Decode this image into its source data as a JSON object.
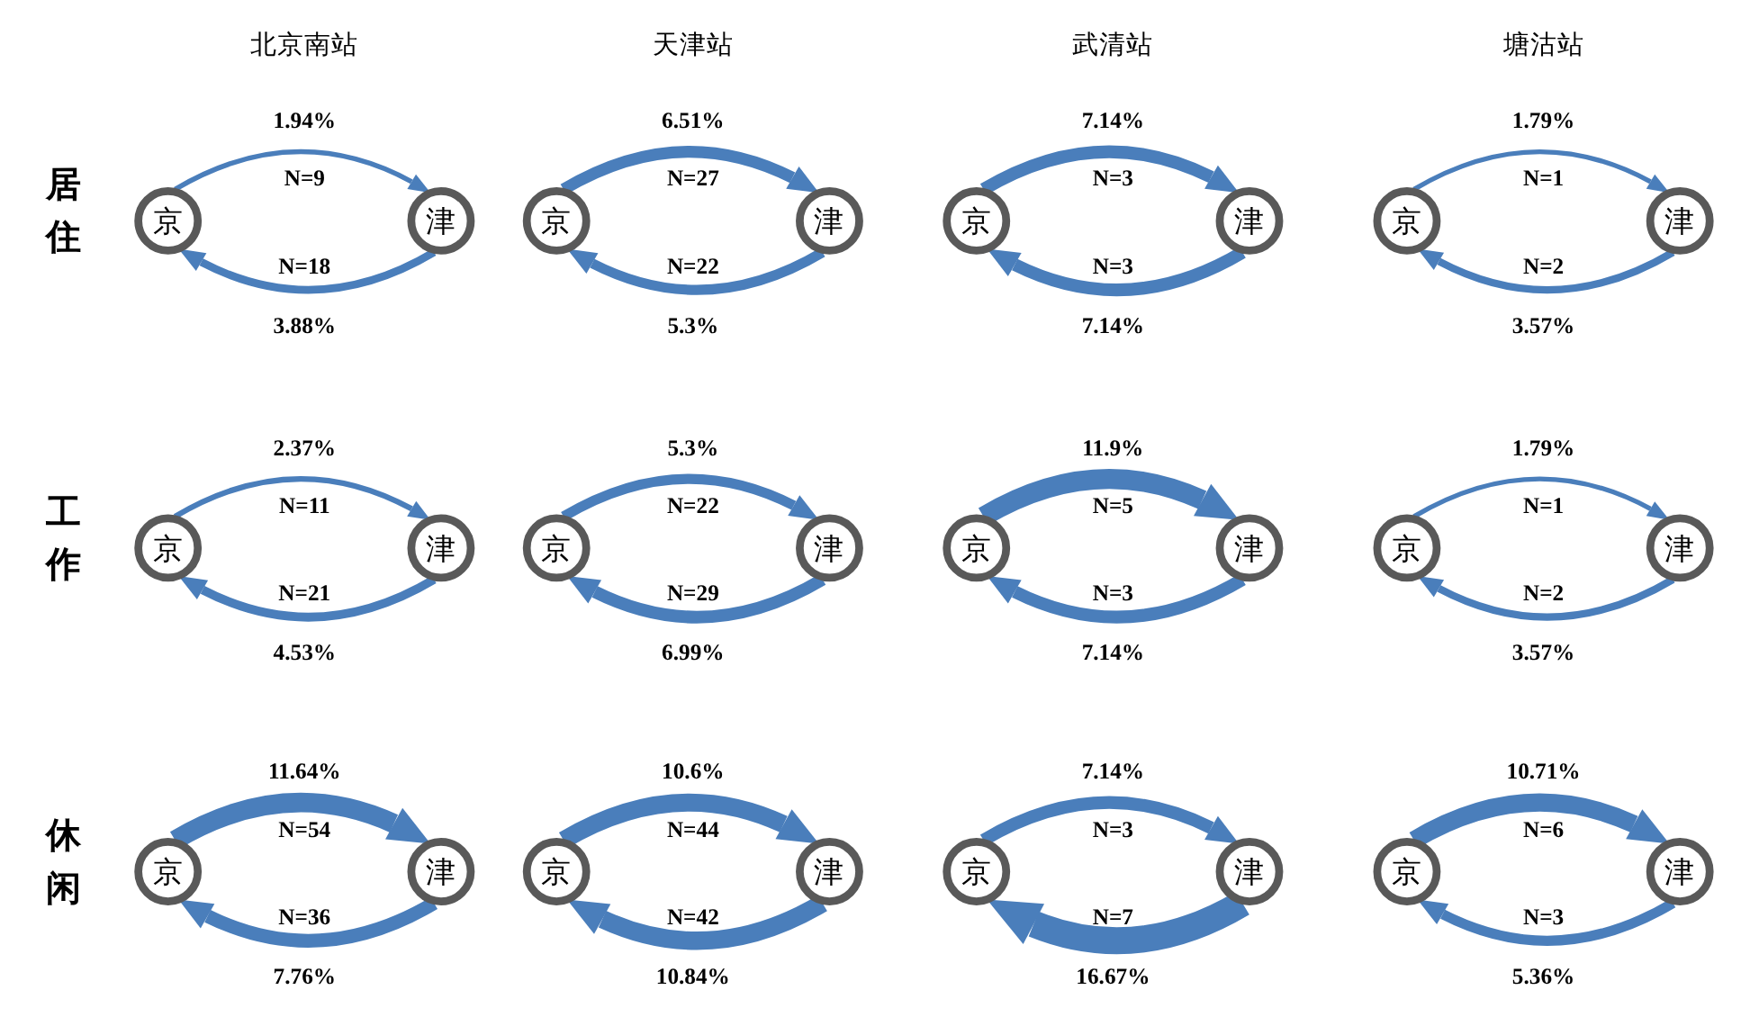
{
  "chart_data": {
    "type": "other",
    "categories": [
      "北京南站",
      "天津站",
      "武清站",
      "塘沽站"
    ],
    "y_categories": [
      "居住",
      "工作",
      "休闲"
    ],
    "annotations": [
      "京",
      "津"
    ],
    "series": [
      {
        "color": "#4a7ebb",
        "values": [
          1.94,
          6.51,
          7.14,
          1.79
        ],
        "value_labels": [
          "1.94%",
          "6.51%",
          "7.14%",
          "1.79%"
        ]
      },
      {
        "values": [
          9,
          27,
          3,
          1
        ],
        "value_labels": [
          "N=9",
          "N=27",
          "N=3",
          "N=1"
        ]
      },
      {
        "color": "#4a7ebb",
        "values": [
          3.88,
          5.3,
          7.14,
          3.57
        ],
        "value_labels": [
          "3.88%",
          "5.3%",
          "7.14%",
          "3.57%"
        ]
      },
      {
        "values": [
          18,
          22,
          3,
          2
        ],
        "value_labels": [
          "N=18",
          "N=22",
          "N=3",
          "N=2"
        ]
      },
      {
        "color": "#4a7ebb",
        "values": [
          2.37,
          5.3,
          11.9,
          1.79
        ],
        "value_labels": [
          "2.37%",
          "5.3%",
          "11.9%",
          "1.79%"
        ]
      },
      {
        "values": [
          11,
          22,
          5,
          1
        ],
        "value_labels": [
          "N=11",
          "N=22",
          "N=5",
          "N=1"
        ]
      },
      {
        "color": "#4a7ebb",
        "values": [
          4.53,
          6.99,
          7.14,
          3.57
        ],
        "value_labels": [
          "4.53%",
          "6.99%",
          "7.14%",
          "3.57%"
        ]
      },
      {
        "values": [
          21,
          29,
          3,
          2
        ],
        "value_labels": [
          "N=21",
          "N=29",
          "N=3",
          "N=2"
        ]
      },
      {
        "color": "#4a7ebb",
        "values": [
          11.64,
          10.6,
          7.14,
          10.71
        ],
        "value_labels": [
          "11.64%",
          "10.6%",
          "7.14%",
          "10.71%"
        ]
      },
      {
        "values": [
          54,
          44,
          3,
          6
        ],
        "value_labels": [
          "N=54",
          "N=44",
          "N=3",
          "N=6"
        ]
      },
      {
        "color": "#4a7ebb",
        "values": [
          7.76,
          10.84,
          16.67,
          5.36
        ],
        "value_labels": [
          "7.76%",
          "10.84%",
          "16.67%",
          "5.36%"
        ]
      },
      {
        "values": [
          36,
          42,
          7,
          3
        ],
        "value_labels": [
          "N=36",
          "N=42",
          "N=7",
          "N=3"
        ]
      }
    ]
  }
}
